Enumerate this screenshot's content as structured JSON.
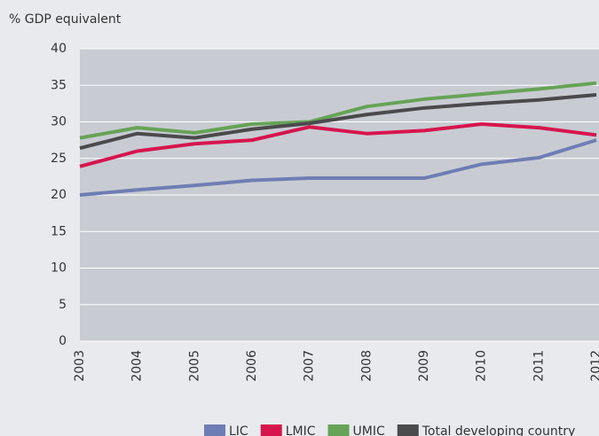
{
  "chart_data": {
    "type": "line",
    "y_label": "% GDP equivalent",
    "x": [
      "2003",
      "2004",
      "2005",
      "2006",
      "2007",
      "2008",
      "2009",
      "2010",
      "2011",
      "2012"
    ],
    "series": [
      {
        "name": "LIC",
        "color": "#6e7eb4",
        "values": [
          20,
          20.7,
          21.3,
          22,
          22.3,
          22.3,
          22.3,
          24.2,
          25.1,
          27.5
        ]
      },
      {
        "name": "LMIC",
        "color": "#d6154e",
        "values": [
          23.9,
          26,
          27,
          27.5,
          29.3,
          28.4,
          28.8,
          29.7,
          29.2,
          28.2
        ]
      },
      {
        "name": "UMIC",
        "color": "#66a356",
        "values": [
          27.8,
          29.2,
          28.5,
          29.7,
          30,
          32.1,
          33.1,
          33.8,
          34.5,
          35.3
        ]
      },
      {
        "name": "Total developing country",
        "color": "#4a4a4c",
        "values": [
          26.4,
          28.4,
          27.8,
          29,
          29.8,
          31,
          31.9,
          32.5,
          33,
          33.7
        ]
      }
    ],
    "ylim": [
      0,
      40
    ],
    "yticks": [
      0,
      5,
      10,
      15,
      20,
      25,
      30,
      35,
      40
    ],
    "grid": true
  }
}
